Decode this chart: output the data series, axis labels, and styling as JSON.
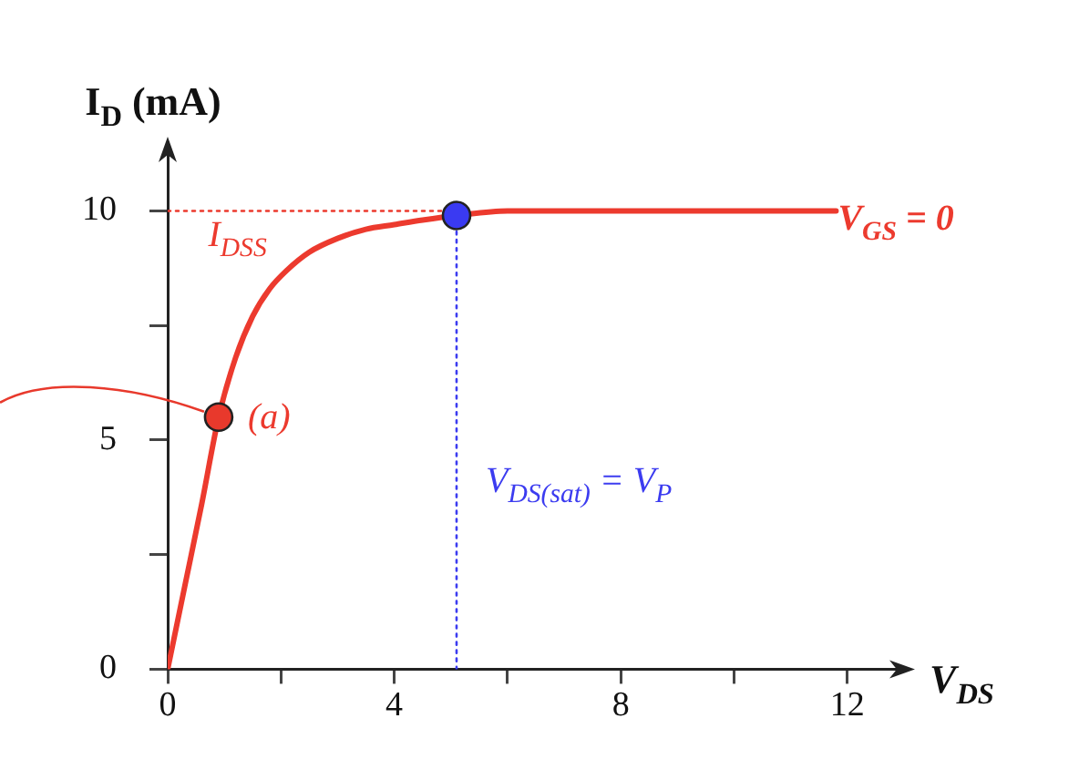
{
  "chart_data": {
    "type": "line",
    "xlabel": "V$_{DS}$",
    "ylabel": "I$_{D}$ (mA)",
    "xlim": [
      0,
      13
    ],
    "ylim": [
      0,
      11.5
    ],
    "xticks": [
      0,
      {
        "value": 2,
        "label": null
      },
      4,
      {
        "value": 6,
        "label": null
      },
      8,
      {
        "value": 10,
        "label": null
      },
      12
    ],
    "yticks": [
      0,
      {
        "value": 2.5,
        "label": null
      },
      5,
      {
        "value": 7.5,
        "label": null
      },
      10
    ],
    "series": [
      {
        "name": "V$_{GS}$ = 0",
        "color": "#ec3a2e",
        "x": [
          0,
          0.3,
          0.6,
          0.9,
          1.2,
          1.5,
          1.8,
          2.1,
          2.5,
          3,
          3.5,
          4,
          4.5,
          5.1,
          6,
          8,
          10,
          11.8
        ],
        "values": [
          0,
          1.8,
          3.6,
          5.5,
          6.8,
          7.7,
          8.3,
          8.7,
          9.1,
          9.4,
          9.6,
          9.7,
          9.8,
          9.9,
          10,
          10,
          10,
          10
        ]
      },
      {
        "color": "#ec3a2e",
        "line_style": "dotted",
        "x": [
          0,
          5.1
        ],
        "values": [
          10,
          10
        ]
      },
      {
        "color": "#3c3cf0",
        "line_style": "dotted",
        "x": [
          5.1,
          5.1
        ],
        "values": [
          0,
          9.9
        ]
      },
      {
        "type": "scatter",
        "color": "#e8392c",
        "marker": "circle",
        "x": [
          0.9
        ],
        "values": [
          5.5
        ]
      },
      {
        "type": "scatter",
        "color": "#3a3af2",
        "marker": "circle",
        "x": [
          5.1
        ],
        "values": [
          9.9
        ]
      }
    ],
    "annotations": [
      {
        "text": "I$_{DSS}$",
        "x": 0.2,
        "y": 10
      },
      {
        "text": "(a)",
        "x": 0.9,
        "y": 5.5
      },
      {
        "text": "V$_{DS(sat)}$ = V$_{P}$",
        "x": 5.1,
        "y": 4.1
      }
    ]
  }
}
